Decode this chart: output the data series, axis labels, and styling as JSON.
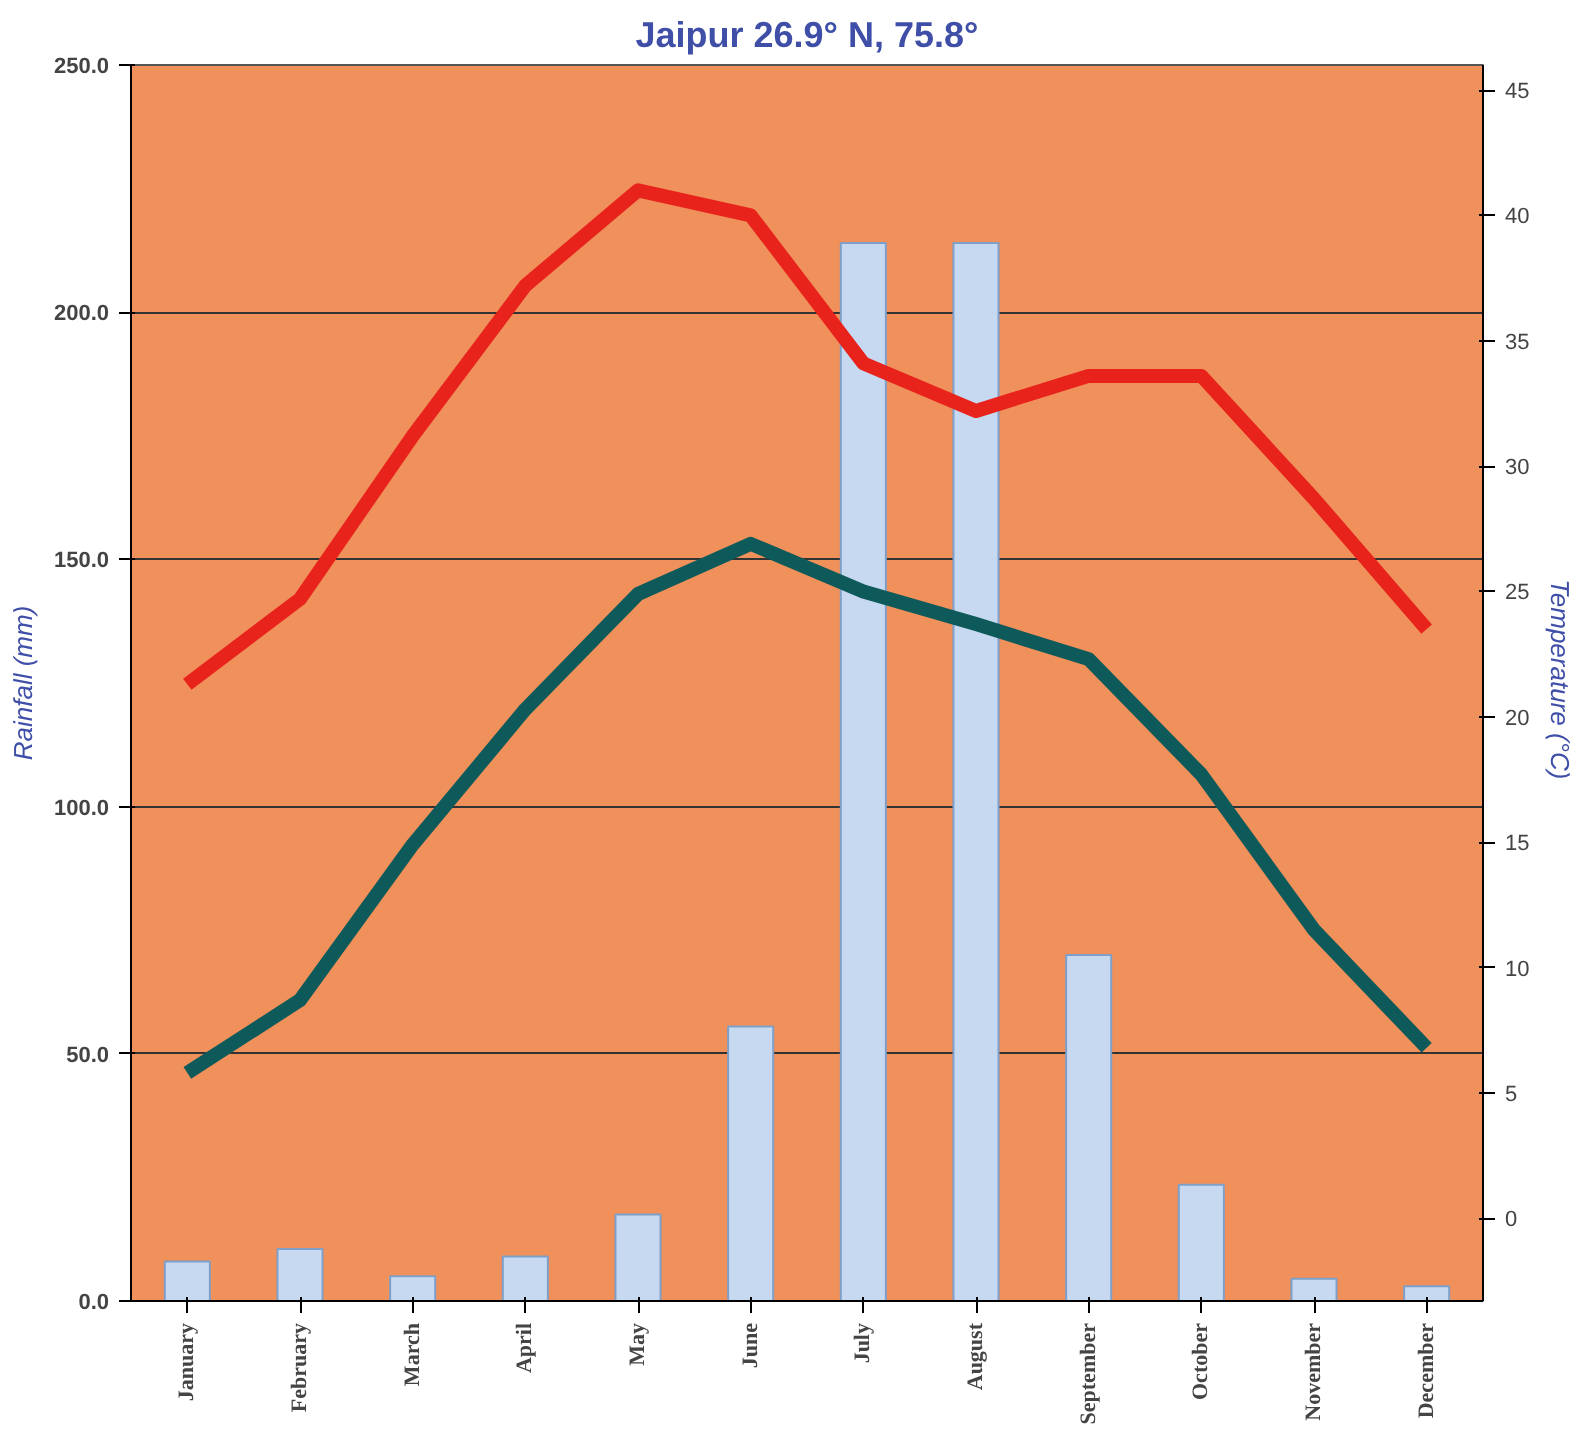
{
  "chart_data": {
    "type": "bar",
    "title": "Jaipur 26.9° N, 75.8°",
    "ylabel": "Rainfall (mm)",
    "y2label": "Temperature  (°C)",
    "categories": [
      "January",
      "February",
      "March",
      "April",
      "May",
      "June",
      "July",
      "August",
      "September",
      "October",
      "November",
      "December"
    ],
    "ylim": [
      0,
      250
    ],
    "yticks": [
      {
        "value": 0,
        "label": "0.0"
      },
      {
        "value": 50,
        "label": "50.0"
      },
      {
        "value": 100,
        "label": "100.0"
      },
      {
        "value": 150,
        "label": "150.0"
      },
      {
        "value": 200,
        "label": "200.0"
      },
      {
        "value": 250,
        "label": "250.0"
      }
    ],
    "y2lim": [
      -3.3,
      46
    ],
    "y2ticks": [
      0,
      5,
      10,
      15,
      20,
      25,
      30,
      35,
      40,
      45
    ],
    "grid": "y",
    "series": [
      {
        "color": "#c6d9f1",
        "values": [
          8,
          10.5,
          5,
          9,
          17.5,
          55.5,
          214,
          214,
          70,
          23.5,
          4.5,
          3
        ]
      },
      {
        "type": "line",
        "axis": "y2",
        "color": "#e8231c",
        "values": [
          21.3,
          24.7,
          31.2,
          37.2,
          41,
          40,
          34.1,
          32.2,
          33.6,
          33.6,
          28.7,
          23.5
        ]
      },
      {
        "type": "line",
        "axis": "y2",
        "color": "#0e5a5a",
        "values": [
          5.8,
          8.7,
          14.9,
          20.3,
          24.9,
          26.9,
          25,
          23.7,
          22.3,
          17.7,
          11.5,
          6.8
        ]
      }
    ]
  }
}
